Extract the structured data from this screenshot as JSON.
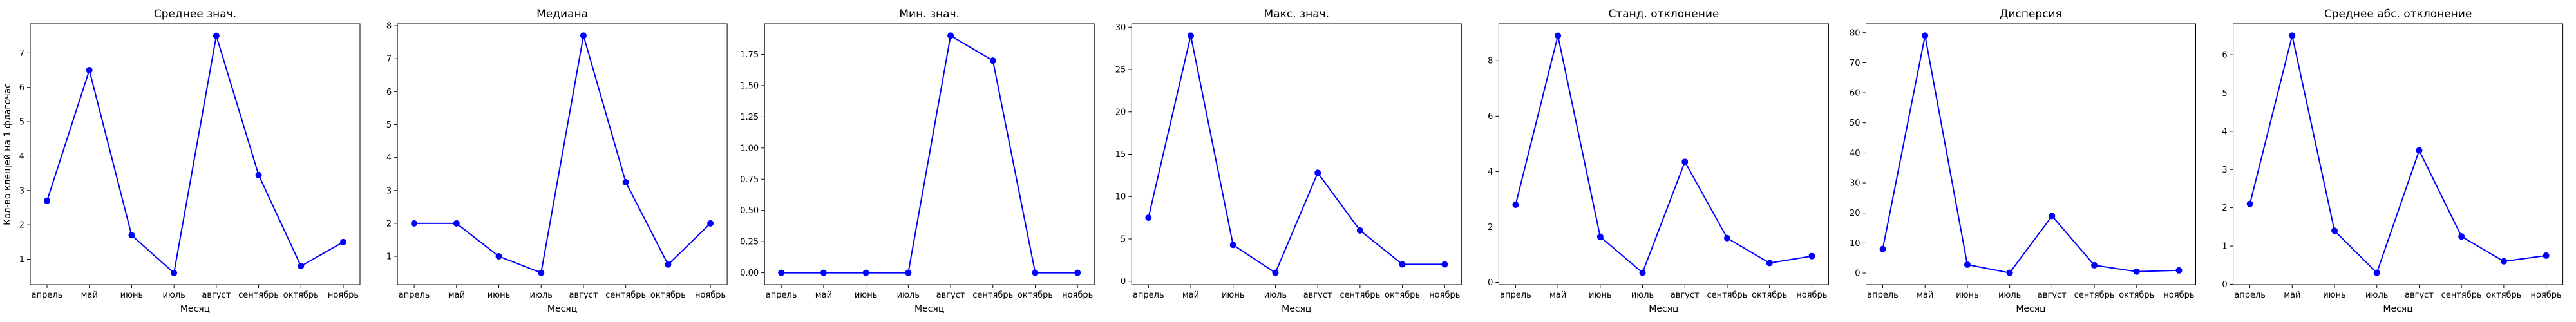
{
  "chart_data": [
    {
      "type": "line",
      "title": "Среднее знач.",
      "xlabel": "Месяц",
      "ylabel": "Кол-во клещей на 1 флагочас",
      "categories": [
        "апрель",
        "май",
        "июнь",
        "июль",
        "август",
        "сентябрь",
        "октябрь",
        "ноябрь"
      ],
      "values": [
        2.7,
        6.5,
        1.7,
        0.6,
        7.5,
        3.45,
        0.8,
        1.5
      ],
      "ylim": [
        0.26,
        7.85
      ],
      "yticks": [
        "1",
        "2",
        "3",
        "4",
        "5",
        "6",
        "7"
      ],
      "color": "#0000ff"
    },
    {
      "type": "line",
      "title": "Медиана",
      "xlabel": "Месяц",
      "ylabel": "",
      "categories": [
        "апрель",
        "май",
        "июнь",
        "июль",
        "август",
        "сентябрь",
        "октябрь",
        "ноябрь"
      ],
      "values": [
        2.0,
        2.0,
        1.0,
        0.5,
        7.7,
        3.25,
        0.75,
        2.0
      ],
      "ylim": [
        0.14,
        8.06
      ],
      "yticks": [
        "1",
        "2",
        "3",
        "4",
        "5",
        "6",
        "7",
        "8"
      ],
      "color": "#0000ff"
    },
    {
      "type": "line",
      "title": "Мин. знач.",
      "xlabel": "Месяц",
      "ylabel": "",
      "categories": [
        "апрель",
        "май",
        "июнь",
        "июль",
        "август",
        "сентябрь",
        "октябрь",
        "ноябрь"
      ],
      "values": [
        0,
        0,
        0,
        0,
        1.9,
        1.7,
        0,
        0
      ],
      "ylim": [
        -0.095,
        1.995
      ],
      "yticks": [
        "0.00",
        "0.25",
        "0.50",
        "0.75",
        "1.00",
        "1.25",
        "1.50",
        "1.75"
      ],
      "color": "#0000ff"
    },
    {
      "type": "line",
      "title": "Макс. знач.",
      "xlabel": "Месяц",
      "ylabel": "",
      "categories": [
        "апрель",
        "май",
        "июнь",
        "июль",
        "август",
        "сентябрь",
        "октябрь",
        "ноябрь"
      ],
      "values": [
        7.5,
        29,
        4.3,
        1.0,
        12.8,
        6.0,
        2.0,
        2.0
      ],
      "ylim": [
        -0.4,
        30.4
      ],
      "yticks": [
        "0",
        "5",
        "10",
        "15",
        "20",
        "25",
        "30"
      ],
      "color": "#0000ff"
    },
    {
      "type": "line",
      "title": "Станд. отклонение",
      "xlabel": "Месяц",
      "ylabel": "",
      "categories": [
        "апрель",
        "май",
        "июнь",
        "июль",
        "август",
        "сентябрь",
        "октябрь",
        "ноябрь"
      ],
      "values": [
        2.8,
        8.9,
        1.65,
        0.35,
        4.35,
        1.6,
        0.7,
        0.95
      ],
      "ylim": [
        -0.08,
        9.33
      ],
      "yticks": [
        "0",
        "2",
        "4",
        "6",
        "8"
      ],
      "color": "#0000ff"
    },
    {
      "type": "line",
      "title": "Дисперсия",
      "xlabel": "Месяц",
      "ylabel": "",
      "categories": [
        "апрель",
        "май",
        "июнь",
        "июль",
        "август",
        "сентябрь",
        "октябрь",
        "ноябрь"
      ],
      "values": [
        8,
        79,
        2.8,
        0.1,
        19,
        2.6,
        0.5,
        0.9
      ],
      "ylim": [
        -3.85,
        82.95
      ],
      "yticks": [
        "0",
        "10",
        "20",
        "30",
        "40",
        "50",
        "60",
        "70",
        "80"
      ],
      "color": "#0000ff"
    },
    {
      "type": "line",
      "title": "Среднее абс. отклонение",
      "xlabel": "Месяц",
      "ylabel": "",
      "categories": [
        "апрель",
        "май",
        "июнь",
        "июль",
        "август",
        "сентябрь",
        "октябрь",
        "ноябрь"
      ],
      "values": [
        2.1,
        6.5,
        1.4,
        0.3,
        3.5,
        1.25,
        0.6,
        0.75
      ],
      "ylim": [
        -0.01,
        6.81
      ],
      "yticks": [
        "0",
        "1",
        "2",
        "3",
        "4",
        "5",
        "6"
      ],
      "color": "#0000ff"
    }
  ]
}
